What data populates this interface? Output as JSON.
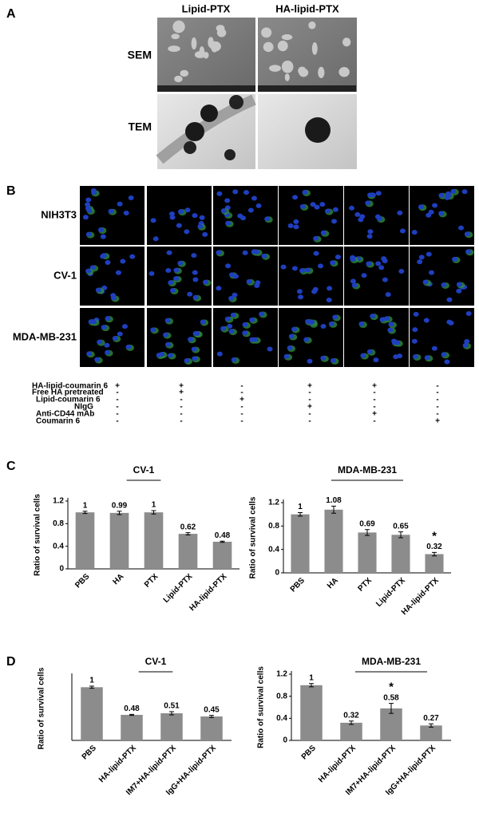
{
  "panel_labels": [
    "A",
    "B",
    "C",
    "D"
  ],
  "panel_a": {
    "columns": [
      "Lipid-PTX",
      "HA-lipid-PTX"
    ],
    "rows": [
      "SEM",
      "TEM"
    ]
  },
  "panel_b": {
    "rows": [
      "NIH3T3",
      "CV-1",
      "MDA-MB-231"
    ],
    "treatments": [
      {
        "label": "HA-lipid-coumarin 6",
        "marks": [
          "+",
          "+",
          "-",
          "+",
          "+",
          "-"
        ]
      },
      {
        "label": "Free HA pretreated",
        "marks": [
          "-",
          "+",
          "-",
          "-",
          "-",
          "-"
        ]
      },
      {
        "label": "Lipid-coumarin 6",
        "marks": [
          "-",
          "-",
          "+",
          "-",
          "-",
          "-"
        ]
      },
      {
        "label": "NIgG",
        "marks": [
          "-",
          "-",
          "-",
          "+",
          "-",
          "-"
        ]
      },
      {
        "label": "Anti-CD44 mAb",
        "marks": [
          "-",
          "-",
          "-",
          "-",
          "+",
          "-"
        ]
      },
      {
        "label": "Coumarin 6",
        "marks": [
          "-",
          "-",
          "-",
          "-",
          "-",
          "+"
        ]
      }
    ]
  },
  "chart_data": [
    {
      "type": "bar",
      "title": "CV-1",
      "ylabel": "Ratio of survival cells",
      "color": "#8c8c8c",
      "categories": [
        "PBS",
        "HA",
        "PTX",
        "Lipid-PTX",
        "HA-lipid-PTX"
      ],
      "values": [
        1,
        0.99,
        1,
        0.62,
        0.48
      ],
      "errors": [
        0.02,
        0.03,
        0.03,
        0.02,
        0.01
      ],
      "ylim": [
        0,
        1.2
      ],
      "yticks": [
        0,
        0.4,
        0.8,
        1.2
      ]
    },
    {
      "type": "bar",
      "title": "MDA-MB-231",
      "ylabel": "Ratio of survival cells",
      "color": "#8c8c8c",
      "categories": [
        "PBS",
        "HA",
        "PTX",
        "Lipid-PTX",
        "HA-lipid-PTX"
      ],
      "values": [
        1,
        1.08,
        0.69,
        0.65,
        0.32
      ],
      "errors": [
        0.03,
        0.06,
        0.05,
        0.05,
        0.03
      ],
      "significance": [
        null,
        null,
        null,
        null,
        "*"
      ],
      "ylim": [
        0,
        1.2
      ],
      "yticks": [
        0,
        0.4,
        0.8,
        1.2
      ]
    },
    {
      "type": "bar",
      "title": "CV-1",
      "ylabel": "Ratio of survival cells",
      "color": "#8c8c8c",
      "categories": [
        "PBS",
        "HA-lipid-PTX",
        "IM7+HA-lipid-PTX",
        "IgG+HA-lipid-PTX"
      ],
      "values": [
        1,
        0.48,
        0.51,
        0.45
      ],
      "errors": [
        0.02,
        0.01,
        0.03,
        0.02
      ],
      "ylim": [
        0,
        1.2
      ]
    },
    {
      "type": "bar",
      "title": "MDA-MB-231",
      "ylabel": "Ratio of survival cells",
      "color": "#8c8c8c",
      "categories": [
        "PBS",
        "HA-lipid-PTX",
        "IM7+HA-lipid-PTX",
        "IgG+HA-lipid-PTX"
      ],
      "values": [
        1,
        0.32,
        0.58,
        0.27
      ],
      "errors": [
        0.03,
        0.03,
        0.09,
        0.03
      ],
      "significance": [
        null,
        null,
        "*",
        null
      ],
      "ylim": [
        0,
        1.2
      ],
      "yticks": [
        0,
        0.4,
        0.8,
        1.2
      ]
    }
  ]
}
